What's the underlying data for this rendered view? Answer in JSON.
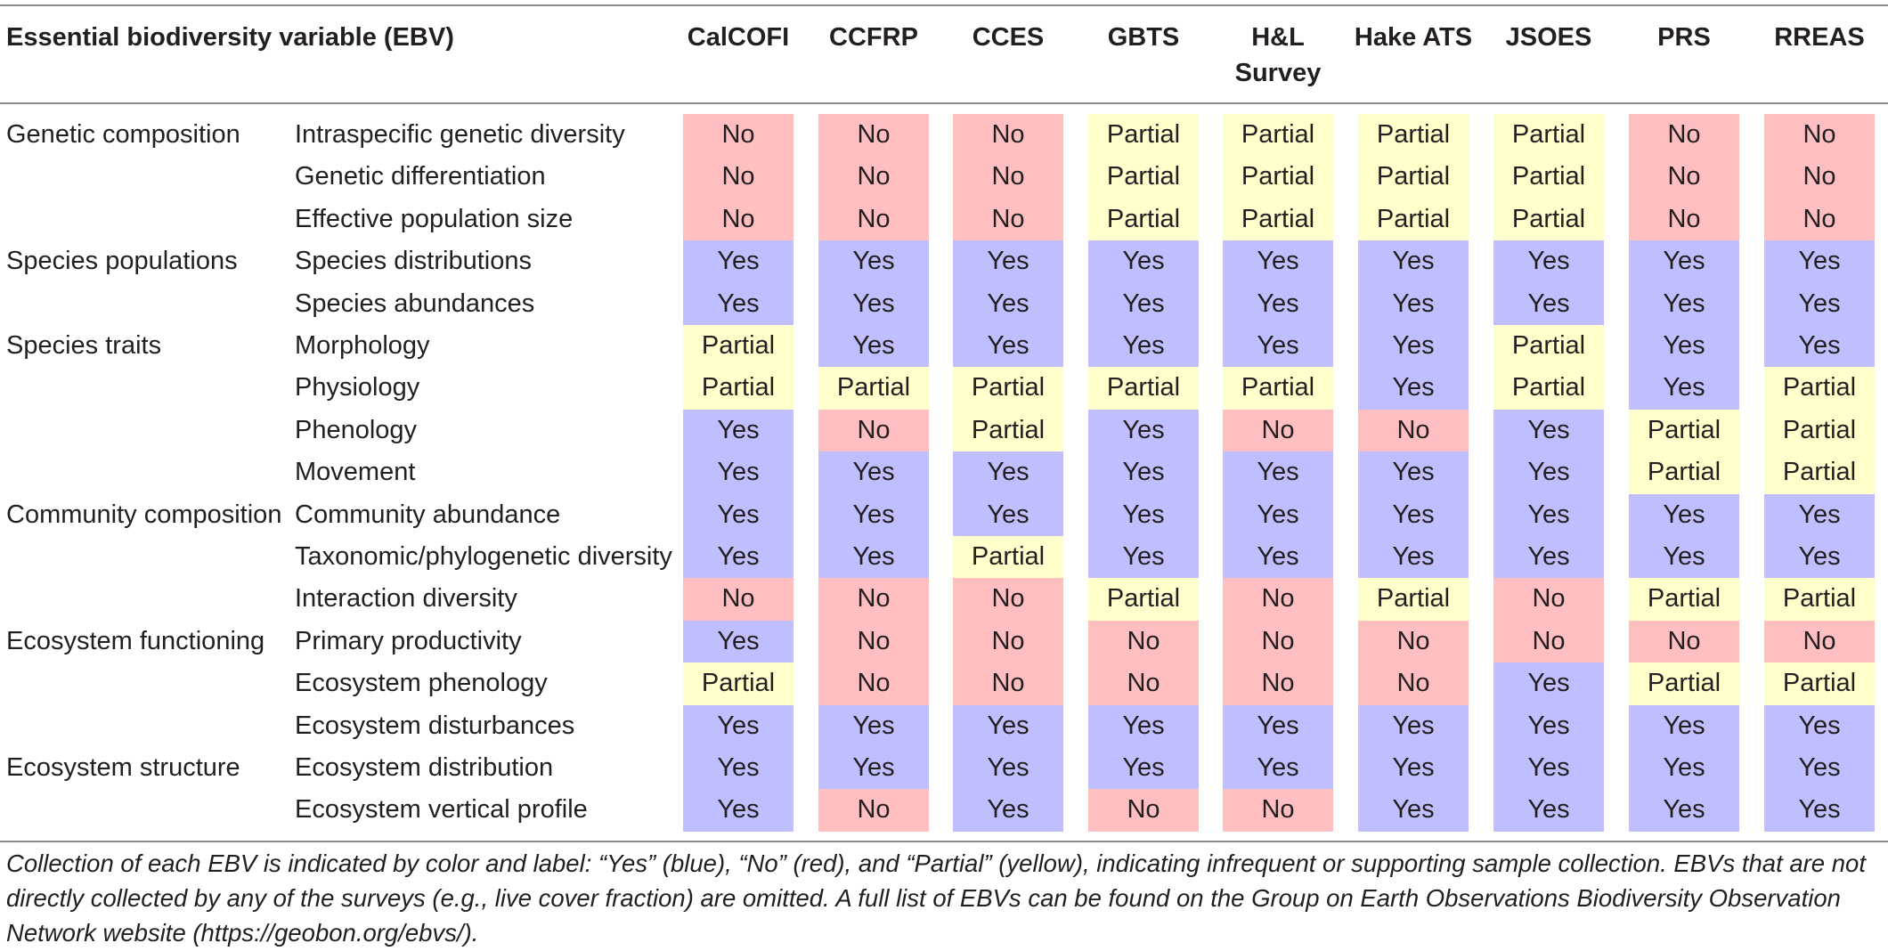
{
  "table": {
    "header": {
      "ebv_label": "Essential biodiversity variable (EBV)",
      "surveys": [
        "CalCOFI",
        "CCFRP",
        "CCES",
        "GBTS",
        "H&L Survey",
        "Hake ATS",
        "JSOES",
        "PRS",
        "RREAS"
      ]
    },
    "rows": [
      {
        "category": "Genetic composition",
        "variable": "Intraspecific genetic diversity",
        "values": [
          "No",
          "No",
          "No",
          "Partial",
          "Partial",
          "Partial",
          "Partial",
          "No",
          "No"
        ]
      },
      {
        "category": "",
        "variable": "Genetic differentiation",
        "values": [
          "No",
          "No",
          "No",
          "Partial",
          "Partial",
          "Partial",
          "Partial",
          "No",
          "No"
        ]
      },
      {
        "category": "",
        "variable": "Effective population size",
        "values": [
          "No",
          "No",
          "No",
          "Partial",
          "Partial",
          "Partial",
          "Partial",
          "No",
          "No"
        ]
      },
      {
        "category": "Species populations",
        "variable": "Species distributions",
        "values": [
          "Yes",
          "Yes",
          "Yes",
          "Yes",
          "Yes",
          "Yes",
          "Yes",
          "Yes",
          "Yes"
        ]
      },
      {
        "category": "",
        "variable": "Species abundances",
        "values": [
          "Yes",
          "Yes",
          "Yes",
          "Yes",
          "Yes",
          "Yes",
          "Yes",
          "Yes",
          "Yes"
        ]
      },
      {
        "category": "Species traits",
        "variable": "Morphology",
        "values": [
          "Partial",
          "Yes",
          "Yes",
          "Yes",
          "Yes",
          "Yes",
          "Partial",
          "Yes",
          "Yes"
        ]
      },
      {
        "category": "",
        "variable": "Physiology",
        "values": [
          "Partial",
          "Partial",
          "Partial",
          "Partial",
          "Partial",
          "Yes",
          "Partial",
          "Yes",
          "Partial"
        ]
      },
      {
        "category": "",
        "variable": "Phenology",
        "values": [
          "Yes",
          "No",
          "Partial",
          "Yes",
          "No",
          "No",
          "Yes",
          "Partial",
          "Partial"
        ]
      },
      {
        "category": "",
        "variable": "Movement",
        "values": [
          "Yes",
          "Yes",
          "Yes",
          "Yes",
          "Yes",
          "Yes",
          "Yes",
          "Partial",
          "Partial"
        ]
      },
      {
        "category": "Community composition",
        "variable": "Community abundance",
        "values": [
          "Yes",
          "Yes",
          "Yes",
          "Yes",
          "Yes",
          "Yes",
          "Yes",
          "Yes",
          "Yes"
        ]
      },
      {
        "category": "",
        "variable": "Taxonomic/phylogenetic diversity",
        "values": [
          "Yes",
          "Yes",
          "Partial",
          "Yes",
          "Yes",
          "Yes",
          "Yes",
          "Yes",
          "Yes"
        ]
      },
      {
        "category": "",
        "variable": "Interaction diversity",
        "values": [
          "No",
          "No",
          "No",
          "Partial",
          "No",
          "Partial",
          "No",
          "Partial",
          "Partial"
        ]
      },
      {
        "category": "Ecosystem functioning",
        "variable": "Primary productivity",
        "values": [
          "Yes",
          "No",
          "No",
          "No",
          "No",
          "No",
          "No",
          "No",
          "No"
        ]
      },
      {
        "category": "",
        "variable": "Ecosystem phenology",
        "values": [
          "Partial",
          "No",
          "No",
          "No",
          "No",
          "No",
          "Yes",
          "Partial",
          "Partial"
        ]
      },
      {
        "category": "",
        "variable": "Ecosystem disturbances",
        "values": [
          "Yes",
          "Yes",
          "Yes",
          "Yes",
          "Yes",
          "Yes",
          "Yes",
          "Yes",
          "Yes"
        ]
      },
      {
        "category": "Ecosystem structure",
        "variable": "Ecosystem distribution",
        "values": [
          "Yes",
          "Yes",
          "Yes",
          "Yes",
          "Yes",
          "Yes",
          "Yes",
          "Yes",
          "Yes"
        ]
      },
      {
        "category": "",
        "variable": "Ecosystem vertical profile",
        "values": [
          "Yes",
          "No",
          "Yes",
          "No",
          "No",
          "Yes",
          "Yes",
          "Yes",
          "Yes"
        ]
      }
    ]
  },
  "colors": {
    "Yes": "#bfbfff",
    "No": "#ffbfc1",
    "Partial": "#ffffcc"
  },
  "caption": "Collection of each EBV is indicated by color and label: “Yes” (blue), “No” (red), and “Partial” (yellow), indicating infrequent or supporting sample collection. EBVs that are not directly collected by any of the surveys (e.g., live cover fraction) are omitted. A full list of EBVs can be found on the Group on Earth Observations Biodiversity Observation Network website (https://geobon.org/ebvs/)."
}
